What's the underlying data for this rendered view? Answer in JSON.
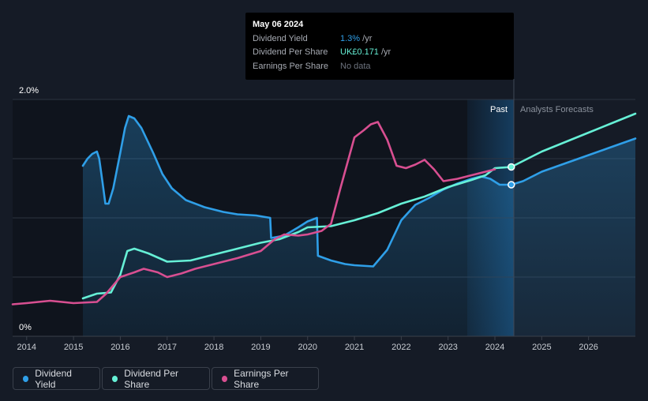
{
  "tooltip": {
    "date": "May 06 2024",
    "rows": [
      {
        "label": "Dividend Yield",
        "value": "1.3%",
        "unit": " /yr"
      },
      {
        "label": "Dividend Per Share",
        "value": "UK£0.171",
        "unit": " /yr"
      },
      {
        "label": "Earnings Per Share",
        "value": "No data",
        "unit": ""
      }
    ]
  },
  "legend": {
    "items": [
      {
        "label": "Dividend Yield",
        "color": "#2f9fe8"
      },
      {
        "label": "Dividend Per Share",
        "color": "#66f0d6"
      },
      {
        "label": "Earnings Per Share",
        "color": "#d84f91"
      }
    ]
  },
  "chart_data": {
    "type": "line",
    "y_tick_labels": [
      "2.0%",
      "0%"
    ],
    "ylim": [
      0,
      2.0
    ],
    "xlim": [
      2013.7,
      2027.0
    ],
    "x_tick_labels": [
      "2014",
      "2015",
      "2016",
      "2017",
      "2018",
      "2019",
      "2020",
      "2021",
      "2022",
      "2023",
      "2024",
      "2025",
      "2026"
    ],
    "region_labels": {
      "past": "Past",
      "forecast": "Analysts Forecasts"
    },
    "past_forecast_boundary": 2024.35,
    "series": [
      {
        "name": "Dividend Yield",
        "color": "#2f9fe8",
        "points": [
          [
            2015.2,
            1.44
          ],
          [
            2015.3,
            1.5
          ],
          [
            2015.4,
            1.54
          ],
          [
            2015.5,
            1.56
          ],
          [
            2015.55,
            1.5
          ],
          [
            2015.62,
            1.3
          ],
          [
            2015.68,
            1.12
          ],
          [
            2015.75,
            1.12
          ],
          [
            2015.85,
            1.25
          ],
          [
            2016.0,
            1.55
          ],
          [
            2016.1,
            1.76
          ],
          [
            2016.18,
            1.86
          ],
          [
            2016.3,
            1.84
          ],
          [
            2016.45,
            1.76
          ],
          [
            2016.7,
            1.55
          ],
          [
            2016.9,
            1.37
          ],
          [
            2017.1,
            1.25
          ],
          [
            2017.4,
            1.15
          ],
          [
            2017.8,
            1.09
          ],
          [
            2018.2,
            1.05
          ],
          [
            2018.5,
            1.03
          ],
          [
            2018.9,
            1.02
          ],
          [
            2019.2,
            1.0
          ],
          [
            2019.22,
            0.83
          ],
          [
            2019.5,
            0.85
          ],
          [
            2019.8,
            0.92
          ],
          [
            2020.0,
            0.97
          ],
          [
            2020.2,
            1.0
          ],
          [
            2020.22,
            0.68
          ],
          [
            2020.5,
            0.64
          ],
          [
            2020.8,
            0.61
          ],
          [
            2021.0,
            0.6
          ],
          [
            2021.4,
            0.59
          ],
          [
            2021.7,
            0.73
          ],
          [
            2022.0,
            0.98
          ],
          [
            2022.3,
            1.11
          ],
          [
            2022.6,
            1.17
          ],
          [
            2022.9,
            1.24
          ],
          [
            2023.2,
            1.29
          ],
          [
            2023.5,
            1.33
          ],
          [
            2023.7,
            1.35
          ],
          [
            2023.9,
            1.33
          ],
          [
            2024.1,
            1.28
          ],
          [
            2024.35,
            1.28
          ]
        ]
      },
      {
        "name": "Dividend Yield (forecast)",
        "color": "#2f9fe8",
        "points": [
          [
            2024.35,
            1.28
          ],
          [
            2024.6,
            1.31
          ],
          [
            2025.0,
            1.39
          ],
          [
            2025.5,
            1.46
          ],
          [
            2026.0,
            1.53
          ],
          [
            2026.5,
            1.6
          ],
          [
            2027.0,
            1.67
          ]
        ]
      },
      {
        "name": "Dividend Per Share",
        "color": "#66f0d6",
        "points": [
          [
            2015.2,
            0.32
          ],
          [
            2015.5,
            0.36
          ],
          [
            2015.8,
            0.37
          ],
          [
            2016.0,
            0.52
          ],
          [
            2016.15,
            0.72
          ],
          [
            2016.3,
            0.74
          ],
          [
            2016.6,
            0.7
          ],
          [
            2017.0,
            0.63
          ],
          [
            2017.5,
            0.64
          ],
          [
            2018.0,
            0.69
          ],
          [
            2018.5,
            0.74
          ],
          [
            2019.0,
            0.79
          ],
          [
            2019.4,
            0.82
          ],
          [
            2019.8,
            0.88
          ],
          [
            2020.0,
            0.92
          ],
          [
            2020.5,
            0.93
          ],
          [
            2021.0,
            0.98
          ],
          [
            2021.5,
            1.04
          ],
          [
            2022.0,
            1.12
          ],
          [
            2022.5,
            1.18
          ],
          [
            2023.0,
            1.26
          ],
          [
            2023.5,
            1.32
          ],
          [
            2023.8,
            1.36
          ],
          [
            2024.0,
            1.42
          ],
          [
            2024.35,
            1.43
          ]
        ]
      },
      {
        "name": "Dividend Per Share (forecast)",
        "color": "#66f0d6",
        "points": [
          [
            2024.35,
            1.43
          ],
          [
            2024.6,
            1.48
          ],
          [
            2025.0,
            1.56
          ],
          [
            2025.5,
            1.64
          ],
          [
            2026.0,
            1.72
          ],
          [
            2026.5,
            1.8
          ],
          [
            2027.0,
            1.88
          ]
        ]
      },
      {
        "name": "Earnings Per Share",
        "color": "#d84f91",
        "points": [
          [
            2013.7,
            0.27
          ],
          [
            2014.0,
            0.28
          ],
          [
            2014.5,
            0.3
          ],
          [
            2015.0,
            0.28
          ],
          [
            2015.5,
            0.29
          ],
          [
            2015.7,
            0.36
          ],
          [
            2016.0,
            0.5
          ],
          [
            2016.3,
            0.54
          ],
          [
            2016.5,
            0.57
          ],
          [
            2016.8,
            0.54
          ],
          [
            2017.0,
            0.5
          ],
          [
            2017.3,
            0.53
          ],
          [
            2017.6,
            0.57
          ],
          [
            2018.0,
            0.61
          ],
          [
            2018.5,
            0.66
          ],
          [
            2019.0,
            0.72
          ],
          [
            2019.3,
            0.82
          ],
          [
            2019.5,
            0.86
          ],
          [
            2019.8,
            0.85
          ],
          [
            2020.0,
            0.86
          ],
          [
            2020.3,
            0.89
          ],
          [
            2020.5,
            0.95
          ],
          [
            2020.7,
            1.25
          ],
          [
            2021.0,
            1.68
          ],
          [
            2021.2,
            1.74
          ],
          [
            2021.35,
            1.79
          ],
          [
            2021.5,
            1.81
          ],
          [
            2021.7,
            1.66
          ],
          [
            2021.9,
            1.44
          ],
          [
            2022.1,
            1.42
          ],
          [
            2022.3,
            1.45
          ],
          [
            2022.5,
            1.49
          ],
          [
            2022.7,
            1.41
          ],
          [
            2022.9,
            1.31
          ],
          [
            2023.2,
            1.33
          ],
          [
            2023.6,
            1.37
          ],
          [
            2024.0,
            1.41
          ]
        ]
      }
    ],
    "markers": [
      {
        "series": "Dividend Yield",
        "x": 2024.35,
        "y": 1.28
      },
      {
        "series": "Dividend Per Share",
        "x": 2024.35,
        "y": 1.43
      }
    ]
  }
}
